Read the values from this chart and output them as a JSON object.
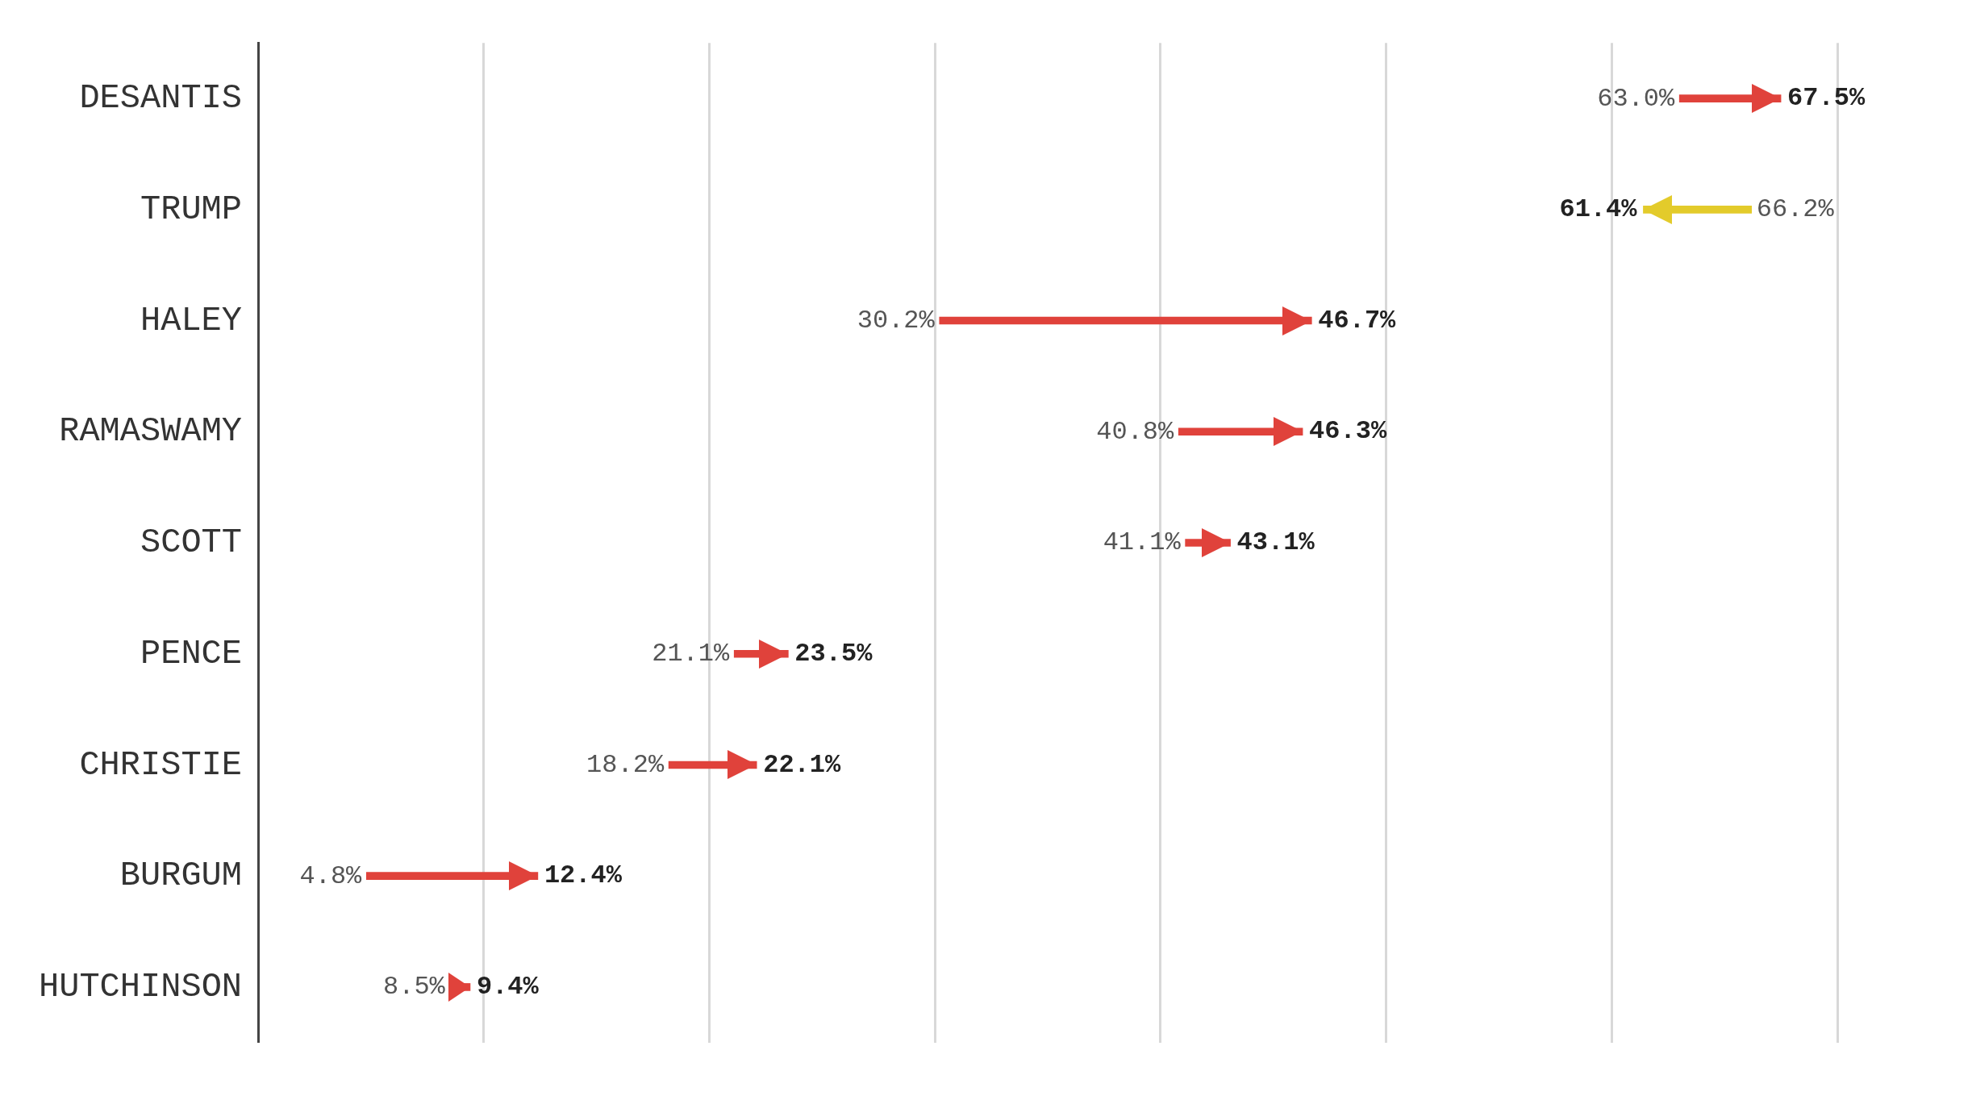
{
  "chart_data": {
    "type": "other",
    "categories": [
      "DESANTIS",
      "TRUMP",
      "HALEY",
      "RAMASWAMY",
      "SCOTT",
      "PENCE",
      "CHRISTIE",
      "BURGUM",
      "HUTCHINSON"
    ],
    "series": [
      {
        "values": [
          63.0,
          66.2,
          30.2,
          40.8,
          41.1,
          21.1,
          18.2,
          4.8,
          8.5
        ],
        "value_labels": [
          "63.0%",
          "66.2%",
          "30.2%",
          "40.8%",
          "41.1%",
          "21.1%",
          "18.2%",
          "4.8%",
          "8.5%"
        ]
      },
      {
        "values": [
          67.5,
          61.4,
          46.7,
          46.3,
          43.1,
          23.5,
          22.1,
          12.4,
          9.4
        ],
        "value_labels": [
          "67.5%",
          "61.4%",
          "46.7%",
          "46.3%",
          "43.1%",
          "23.5%",
          "22.1%",
          "12.4%",
          "9.4%"
        ]
      }
    ],
    "colors": [
      "#e0423b",
      "#e3cb2b",
      "#e0423b",
      "#e0423b",
      "#e0423b",
      "#e0423b",
      "#e0423b",
      "#e0423b",
      "#e0423b"
    ],
    "legend": false
  }
}
